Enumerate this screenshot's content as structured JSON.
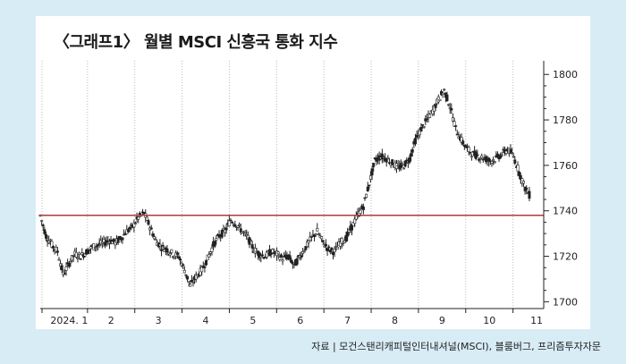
{
  "title": "〈그래프1〉 월별 MSCI 신흥국 통화 지수",
  "source": "자료 | 모건스탠리캐피털인터내셔널(MSCI), 블룸버그, 프리즘투자자문",
  "chart_data": {
    "type": "candlestick",
    "title": "〈그래프1〉 월별 MSCI 신흥국 통화 지수",
    "xlabel": "",
    "ylabel": "",
    "x_ticks": [
      "2024. 1",
      "2",
      "3",
      "4",
      "5",
      "6",
      "7",
      "8",
      "9",
      "10",
      "11"
    ],
    "y_ticks": [
      1700,
      1720,
      1740,
      1760,
      1780,
      1800
    ],
    "ylim": [
      1697,
      1806
    ],
    "y_axis_side": "right",
    "grid": "vertical dotted",
    "reference_line": {
      "value": 1738,
      "color": "#b03a3a"
    },
    "series": [
      {
        "color": "#222222",
        "points": [
          [
            0,
            1738
          ],
          [
            0.5,
            1729
          ],
          [
            1,
            1725
          ],
          [
            1.5,
            1722
          ],
          [
            2,
            1712
          ],
          [
            2.5,
            1717
          ],
          [
            3,
            1721
          ],
          [
            3.5,
            1720
          ],
          [
            4,
            1722
          ],
          [
            4.5,
            1724
          ],
          [
            5,
            1725
          ],
          [
            5.5,
            1726
          ],
          [
            6,
            1727
          ],
          [
            6.5,
            1726
          ],
          [
            7,
            1728
          ],
          [
            7.5,
            1731
          ],
          [
            8,
            1733
          ],
          [
            8.5,
            1737
          ],
          [
            9,
            1739
          ],
          [
            9.5,
            1733
          ],
          [
            10,
            1727
          ],
          [
            10.5,
            1724
          ],
          [
            11,
            1723
          ],
          [
            11.5,
            1721
          ],
          [
            12,
            1720
          ],
          [
            12.5,
            1714
          ],
          [
            13,
            1707
          ],
          [
            13.5,
            1711
          ],
          [
            14,
            1714
          ],
          [
            14.5,
            1719
          ],
          [
            15,
            1725
          ],
          [
            15.5,
            1729
          ],
          [
            16,
            1731
          ],
          [
            16.5,
            1736
          ],
          [
            17,
            1734
          ],
          [
            17.5,
            1731
          ],
          [
            18,
            1728
          ],
          [
            18.5,
            1723
          ],
          [
            19,
            1721
          ],
          [
            19.5,
            1720
          ],
          [
            20,
            1722
          ],
          [
            20.5,
            1721
          ],
          [
            21,
            1719
          ],
          [
            21.5,
            1720
          ],
          [
            22,
            1716
          ],
          [
            22.5,
            1720
          ],
          [
            23,
            1724
          ],
          [
            23.5,
            1728
          ],
          [
            24,
            1731
          ],
          [
            24.5,
            1726
          ],
          [
            25,
            1723
          ],
          [
            25.5,
            1722
          ],
          [
            26,
            1726
          ],
          [
            26.5,
            1728
          ],
          [
            27,
            1733
          ],
          [
            27.5,
            1738
          ],
          [
            28,
            1742
          ],
          [
            28.5,
            1752
          ],
          [
            29,
            1762
          ],
          [
            29.5,
            1764
          ],
          [
            30,
            1763
          ],
          [
            30.5,
            1761
          ],
          [
            31,
            1759
          ],
          [
            31.5,
            1760
          ],
          [
            32,
            1763
          ],
          [
            32.5,
            1771
          ],
          [
            33,
            1776
          ],
          [
            33.5,
            1780
          ],
          [
            34,
            1784
          ],
          [
            34.5,
            1789
          ],
          [
            35,
            1793
          ],
          [
            35.5,
            1786
          ],
          [
            36,
            1776
          ],
          [
            36.5,
            1771
          ],
          [
            37,
            1767
          ],
          [
            37.5,
            1765
          ],
          [
            38,
            1764
          ],
          [
            38.5,
            1763
          ],
          [
            39,
            1762
          ],
          [
            39.5,
            1763
          ],
          [
            40,
            1765
          ],
          [
            40.5,
            1767
          ],
          [
            41,
            1764
          ],
          [
            41.5,
            1757
          ],
          [
            42,
            1750
          ],
          [
            42.5,
            1746
          ]
        ]
      }
    ]
  }
}
